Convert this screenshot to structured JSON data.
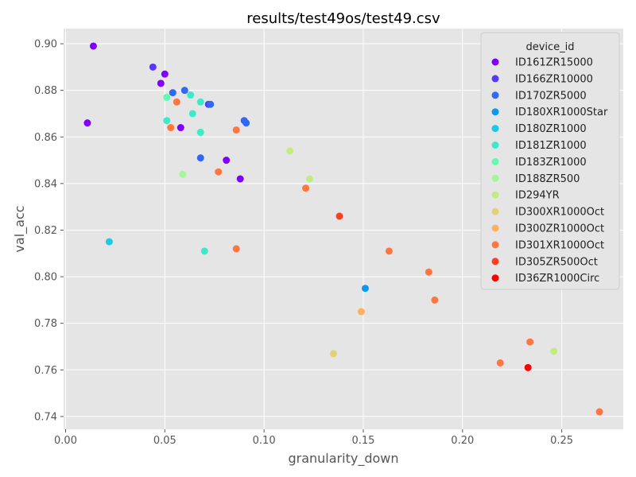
{
  "chart_data": {
    "type": "scatter",
    "title": "results/test49os/test49.csv",
    "xlabel": "granularity_down",
    "ylabel": "val_acc",
    "xlim": [
      -0.001,
      0.281
    ],
    "ylim": [
      0.7345,
      0.9065
    ],
    "xticks": [
      "0.00",
      "0.05",
      "0.10",
      "0.15",
      "0.20",
      "0.25"
    ],
    "xtick_values": [
      0.0,
      0.05,
      0.1,
      0.15,
      0.2,
      0.25
    ],
    "yticks": [
      "0.74",
      "0.76",
      "0.78",
      "0.80",
      "0.82",
      "0.84",
      "0.86",
      "0.88",
      "0.90"
    ],
    "ytick_values": [
      0.74,
      0.76,
      0.78,
      0.8,
      0.82,
      0.84,
      0.86,
      0.88,
      0.9
    ],
    "grid": true,
    "legend_title": "device_id",
    "legend_position": "top-right",
    "series": [
      {
        "name": "ID161ZR15000",
        "color": "#8000ff",
        "points": [
          [
            0.014,
            0.899
          ],
          [
            0.05,
            0.887
          ],
          [
            0.048,
            0.883
          ],
          [
            0.011,
            0.866
          ],
          [
            0.058,
            0.864
          ],
          [
            0.081,
            0.85
          ],
          [
            0.088,
            0.842
          ]
        ]
      },
      {
        "name": "ID166ZR10000",
        "color": "#5a35fa",
        "points": [
          [
            0.044,
            0.89
          ],
          [
            0.072,
            0.874
          ]
        ]
      },
      {
        "name": "ID170ZR5000",
        "color": "#3169f5",
        "points": [
          [
            0.054,
            0.879
          ],
          [
            0.06,
            0.88
          ],
          [
            0.073,
            0.874
          ],
          [
            0.09,
            0.867
          ],
          [
            0.091,
            0.866
          ],
          [
            0.068,
            0.851
          ]
        ]
      },
      {
        "name": "ID180XR1000Star",
        "color": "#0e9aec",
        "points": [
          [
            0.151,
            0.795
          ]
        ]
      },
      {
        "name": "ID180ZR1000",
        "color": "#18cde3",
        "points": [
          [
            0.022,
            0.815
          ]
        ]
      },
      {
        "name": "ID181ZR1000",
        "color": "#3ceac9",
        "points": [
          [
            0.063,
            0.878
          ],
          [
            0.068,
            0.875
          ],
          [
            0.051,
            0.867
          ],
          [
            0.064,
            0.87
          ],
          [
            0.068,
            0.862
          ],
          [
            0.07,
            0.811
          ]
        ]
      },
      {
        "name": "ID183ZR1000",
        "color": "#64f8b5",
        "points": [
          [
            0.051,
            0.877
          ]
        ]
      },
      {
        "name": "ID188ZR500",
        "color": "#a1f79a",
        "points": [
          [
            0.059,
            0.844
          ]
        ]
      },
      {
        "name": "ID294YR",
        "color": "#c4ea82",
        "points": [
          [
            0.113,
            0.854
          ],
          [
            0.123,
            0.842
          ],
          [
            0.246,
            0.768
          ]
        ]
      },
      {
        "name": "ID300XR1000Oct",
        "color": "#e1d27a",
        "points": [
          [
            0.135,
            0.767
          ]
        ]
      },
      {
        "name": "ID300ZR1000Oct",
        "color": "#ffb160",
        "points": [
          [
            0.149,
            0.785
          ]
        ]
      },
      {
        "name": "ID301XR1000Oct",
        "color": "#ff7640",
        "points": [
          [
            0.056,
            0.875
          ],
          [
            0.053,
            0.864
          ],
          [
            0.086,
            0.863
          ],
          [
            0.077,
            0.845
          ],
          [
            0.121,
            0.838
          ],
          [
            0.086,
            0.812
          ],
          [
            0.163,
            0.811
          ],
          [
            0.183,
            0.802
          ],
          [
            0.186,
            0.79
          ],
          [
            0.234,
            0.772
          ],
          [
            0.219,
            0.763
          ],
          [
            0.269,
            0.742
          ]
        ]
      },
      {
        "name": "ID305ZR500Oct",
        "color": "#ff4020",
        "points": [
          [
            0.138,
            0.826
          ]
        ]
      },
      {
        "name": "ID36ZR1000Circ",
        "color": "#ff0000",
        "points": [
          [
            0.233,
            0.761
          ]
        ]
      }
    ]
  }
}
